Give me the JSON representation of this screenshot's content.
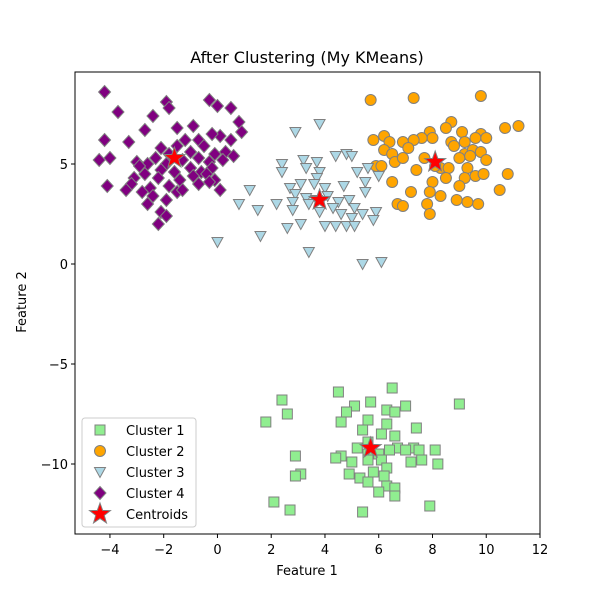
{
  "chart_data": {
    "type": "scatter",
    "title": "After Clustering (My KMeans)",
    "xlabel": "Feature 1",
    "ylabel": "Feature 2",
    "xlim": [
      -5.3,
      12.0
    ],
    "ylim": [
      -13.5,
      9.6
    ],
    "x_ticks": [
      -4,
      -2,
      0,
      2,
      4,
      6,
      8,
      10,
      12
    ],
    "y_ticks": [
      -10,
      -5,
      0,
      5
    ],
    "grid": false,
    "legend_position": "lower-left",
    "series": [
      {
        "name": "Cluster 1",
        "marker": "square",
        "color": "#90EE90",
        "edge_color": "#808080",
        "points": [
          [
            4.5,
            -6.4
          ],
          [
            6.5,
            -6.2
          ],
          [
            2.4,
            -6.8
          ],
          [
            5.7,
            -6.9
          ],
          [
            7.0,
            -7.1
          ],
          [
            9.0,
            -7.0
          ],
          [
            5.1,
            -7.1
          ],
          [
            4.8,
            -7.4
          ],
          [
            6.3,
            -7.3
          ],
          [
            6.6,
            -7.4
          ],
          [
            2.6,
            -7.5
          ],
          [
            1.8,
            -7.9
          ],
          [
            4.6,
            -7.9
          ],
          [
            5.6,
            -7.8
          ],
          [
            6.3,
            -8.0
          ],
          [
            7.4,
            -8.2
          ],
          [
            5.4,
            -8.3
          ],
          [
            6.1,
            -8.5
          ],
          [
            6.6,
            -8.6
          ],
          [
            5.6,
            -8.9
          ],
          [
            5.2,
            -9.2
          ],
          [
            6.7,
            -9.2
          ],
          [
            7.3,
            -9.2
          ],
          [
            7.5,
            -9.3
          ],
          [
            8.1,
            -9.3
          ],
          [
            7.0,
            -9.3
          ],
          [
            6.4,
            -9.3
          ],
          [
            5.6,
            -9.5
          ],
          [
            4.6,
            -9.6
          ],
          [
            6.0,
            -9.5
          ],
          [
            2.9,
            -9.6
          ],
          [
            4.4,
            -9.7
          ],
          [
            5.0,
            -9.9
          ],
          [
            5.6,
            -9.8
          ],
          [
            6.1,
            -9.8
          ],
          [
            7.6,
            -9.8
          ],
          [
            7.2,
            -9.9
          ],
          [
            8.2,
            -10.0
          ],
          [
            6.3,
            -10.2
          ],
          [
            5.8,
            -10.4
          ],
          [
            4.9,
            -10.5
          ],
          [
            3.1,
            -10.5
          ],
          [
            2.9,
            -10.6
          ],
          [
            6.2,
            -10.6
          ],
          [
            5.3,
            -10.7
          ],
          [
            5.6,
            -10.9
          ],
          [
            6.3,
            -11.1
          ],
          [
            6.6,
            -11.2
          ],
          [
            6.0,
            -11.4
          ],
          [
            6.6,
            -11.6
          ],
          [
            2.1,
            -11.9
          ],
          [
            7.9,
            -12.1
          ],
          [
            2.7,
            -12.3
          ],
          [
            5.4,
            -12.4
          ]
        ]
      },
      {
        "name": "Cluster 2",
        "marker": "circle",
        "color": "#FFA500",
        "edge_color": "#808080",
        "points": [
          [
            5.7,
            8.2
          ],
          [
            7.3,
            8.3
          ],
          [
            9.8,
            8.4
          ],
          [
            8.7,
            7.1
          ],
          [
            9.1,
            6.6
          ],
          [
            8.5,
            6.8
          ],
          [
            10.7,
            6.8
          ],
          [
            11.2,
            6.9
          ],
          [
            7.9,
            6.6
          ],
          [
            8.0,
            6.3
          ],
          [
            6.2,
            6.4
          ],
          [
            7.6,
            6.3
          ],
          [
            9.8,
            6.5
          ],
          [
            6.4,
            6.1
          ],
          [
            6.9,
            6.1
          ],
          [
            5.8,
            6.2
          ],
          [
            7.3,
            6.2
          ],
          [
            8.7,
            6.1
          ],
          [
            9.2,
            6.1
          ],
          [
            9.6,
            6.3
          ],
          [
            10.0,
            6.3
          ],
          [
            6.2,
            5.7
          ],
          [
            6.5,
            5.5
          ],
          [
            7.1,
            5.8
          ],
          [
            7.7,
            5.3
          ],
          [
            8.8,
            5.9
          ],
          [
            9.2,
            5.5
          ],
          [
            9.5,
            5.7
          ],
          [
            9.8,
            5.6
          ],
          [
            6.6,
            5.1
          ],
          [
            6.9,
            5.3
          ],
          [
            5.9,
            4.9
          ],
          [
            6.1,
            4.9
          ],
          [
            8.3,
            4.8
          ],
          [
            9.0,
            5.3
          ],
          [
            9.4,
            5.4
          ],
          [
            10.0,
            5.2
          ],
          [
            7.4,
            4.7
          ],
          [
            8.1,
            4.9
          ],
          [
            8.6,
            4.8
          ],
          [
            9.3,
            4.8
          ],
          [
            9.6,
            4.4
          ],
          [
            6.5,
            4.1
          ],
          [
            8.0,
            4.1
          ],
          [
            8.5,
            4.3
          ],
          [
            9.2,
            4.3
          ],
          [
            9.9,
            4.5
          ],
          [
            10.8,
            4.5
          ],
          [
            7.2,
            3.6
          ],
          [
            7.9,
            3.6
          ],
          [
            9.0,
            3.9
          ],
          [
            10.5,
            3.7
          ],
          [
            6.7,
            3.0
          ],
          [
            8.3,
            3.4
          ],
          [
            6.9,
            2.9
          ],
          [
            7.8,
            3.0
          ],
          [
            8.9,
            3.2
          ],
          [
            9.3,
            3.1
          ],
          [
            9.7,
            3.0
          ],
          [
            7.9,
            2.5
          ]
        ]
      },
      {
        "name": "Cluster 3",
        "marker": "triangle-down",
        "color": "#ADD8E6",
        "edge_color": "#808080",
        "points": [
          [
            3.8,
            7.0
          ],
          [
            2.9,
            6.6
          ],
          [
            4.4,
            5.4
          ],
          [
            4.8,
            5.5
          ],
          [
            5.0,
            5.4
          ],
          [
            3.2,
            5.2
          ],
          [
            3.7,
            5.1
          ],
          [
            2.4,
            5.0
          ],
          [
            5.6,
            4.8
          ],
          [
            2.4,
            4.6
          ],
          [
            3.3,
            4.8
          ],
          [
            3.8,
            4.6
          ],
          [
            5.2,
            4.6
          ],
          [
            3.7,
            4.3
          ],
          [
            6.0,
            4.4
          ],
          [
            5.5,
            4.1
          ],
          [
            3.1,
            4.0
          ],
          [
            3.6,
            4.0
          ],
          [
            1.2,
            3.7
          ],
          [
            2.7,
            3.8
          ],
          [
            2.9,
            3.5
          ],
          [
            4.0,
            3.8
          ],
          [
            4.7,
            3.9
          ],
          [
            5.5,
            3.6
          ],
          [
            2.8,
            3.1
          ],
          [
            3.3,
            3.3
          ],
          [
            3.7,
            3.2
          ],
          [
            4.1,
            3.4
          ],
          [
            4.5,
            3.1
          ],
          [
            4.9,
            3.2
          ],
          [
            0.8,
            3.0
          ],
          [
            2.2,
            3.0
          ],
          [
            3.4,
            3.0
          ],
          [
            4.3,
            2.8
          ],
          [
            5.1,
            2.8
          ],
          [
            5.4,
            2.5
          ],
          [
            5.9,
            2.6
          ],
          [
            1.5,
            2.7
          ],
          [
            2.8,
            2.7
          ],
          [
            3.8,
            2.6
          ],
          [
            4.6,
            2.5
          ],
          [
            5.0,
            2.3
          ],
          [
            5.8,
            2.2
          ],
          [
            3.1,
            2.0
          ],
          [
            4.0,
            1.9
          ],
          [
            4.4,
            1.9
          ],
          [
            4.8,
            1.9
          ],
          [
            5.1,
            1.9
          ],
          [
            2.6,
            1.8
          ],
          [
            1.6,
            1.4
          ],
          [
            0.0,
            1.1
          ],
          [
            3.4,
            0.6
          ],
          [
            6.1,
            0.1
          ],
          [
            5.4,
            0.0
          ]
        ]
      },
      {
        "name": "Cluster 4",
        "marker": "diamond",
        "color": "#800080",
        "edge_color": "#808080",
        "points": [
          [
            -4.2,
            8.6
          ],
          [
            -1.9,
            8.1
          ],
          [
            -1.8,
            7.8
          ],
          [
            -3.7,
            7.6
          ],
          [
            -2.4,
            7.4
          ],
          [
            -0.3,
            8.2
          ],
          [
            0.0,
            7.9
          ],
          [
            0.5,
            7.8
          ],
          [
            -1.5,
            6.8
          ],
          [
            -0.9,
            6.9
          ],
          [
            -2.7,
            6.7
          ],
          [
            -4.2,
            6.2
          ],
          [
            -3.3,
            6.1
          ],
          [
            -1.2,
            6.2
          ],
          [
            -0.7,
            6.2
          ],
          [
            0.1,
            6.4
          ],
          [
            0.5,
            6.2
          ],
          [
            -0.2,
            6.5
          ],
          [
            0.8,
            7.1
          ],
          [
            0.9,
            6.6
          ],
          [
            -2.1,
            5.8
          ],
          [
            -1.8,
            5.5
          ],
          [
            -1.5,
            5.9
          ],
          [
            -1.0,
            5.6
          ],
          [
            -0.5,
            5.9
          ],
          [
            -0.1,
            5.5
          ],
          [
            0.3,
            5.6
          ],
          [
            0.6,
            5.4
          ],
          [
            -4.0,
            5.3
          ],
          [
            -4.4,
            5.2
          ],
          [
            -3.0,
            5.1
          ],
          [
            -2.6,
            5.0
          ],
          [
            -2.3,
            5.3
          ],
          [
            -1.9,
            5.0
          ],
          [
            -1.3,
            5.2
          ],
          [
            -0.7,
            5.3
          ],
          [
            -0.3,
            5.1
          ],
          [
            0.2,
            5.2
          ],
          [
            -2.9,
            4.9
          ],
          [
            -2.1,
            4.7
          ],
          [
            -1.6,
            4.6
          ],
          [
            -1.0,
            4.8
          ],
          [
            -0.6,
            4.6
          ],
          [
            -0.2,
            4.8
          ],
          [
            -3.1,
            4.3
          ],
          [
            -2.7,
            4.5
          ],
          [
            -2.2,
            4.3
          ],
          [
            -1.4,
            4.2
          ],
          [
            -0.9,
            4.4
          ],
          [
            -0.4,
            4.5
          ],
          [
            -0.1,
            4.2
          ],
          [
            -3.2,
            4.0
          ],
          [
            -2.5,
            3.8
          ],
          [
            -1.8,
            3.9
          ],
          [
            -1.5,
            3.6
          ],
          [
            -0.7,
            4.0
          ],
          [
            -0.3,
            4.1
          ],
          [
            -4.1,
            3.9
          ],
          [
            -3.4,
            3.7
          ],
          [
            -2.8,
            3.6
          ],
          [
            -2.4,
            3.4
          ],
          [
            -1.9,
            3.2
          ],
          [
            -1.3,
            3.7
          ],
          [
            0.1,
            3.7
          ],
          [
            -2.6,
            3.0
          ],
          [
            -2.1,
            2.6
          ],
          [
            -1.9,
            2.4
          ],
          [
            -2.2,
            2.0
          ]
        ]
      },
      {
        "name": "Centroids",
        "marker": "star",
        "color": "#FF0000",
        "edge_color": "#808080",
        "points": [
          [
            -1.6,
            5.3
          ],
          [
            3.8,
            3.2
          ],
          [
            8.1,
            5.1
          ],
          [
            5.7,
            -9.2
          ]
        ]
      }
    ]
  }
}
